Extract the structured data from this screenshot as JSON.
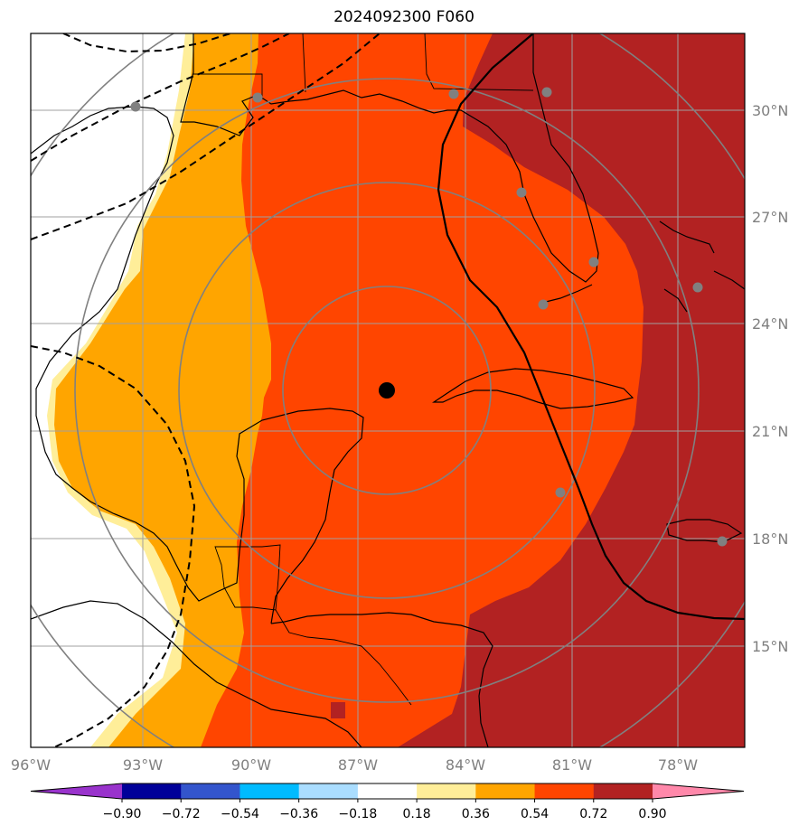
{
  "title": "2024092300 F060",
  "axes": {
    "lon_ticks": [
      "96°W",
      "93°W",
      "90°W",
      "87°W",
      "84°W",
      "81°W",
      "78°W"
    ],
    "lat_ticks": [
      "30°N",
      "27°N",
      "24°N",
      "21°N",
      "18°N",
      "15°N"
    ]
  },
  "colorbar": {
    "levels": [
      "−0.90",
      "−0.72",
      "−0.54",
      "−0.36",
      "−0.18",
      "0.18",
      "0.36",
      "0.54",
      "0.72",
      "0.90"
    ],
    "colors": [
      "#9933cc",
      "#000099",
      "#3355cc",
      "#00bbff",
      "#aaddff",
      "#ffffff",
      "#ffee99",
      "#ffa500",
      "#ff4500",
      "#b22222",
      "#ff88aa"
    ]
  },
  "fill_colors": {
    "white": "#ffffff",
    "pale_yellow": "#ffee99",
    "orange": "#ffa500",
    "orange_red": "#ff4500",
    "dark_red": "#b22222"
  },
  "markers": {
    "center": "black-dot",
    "stations": "gray-dots"
  },
  "grid_color": "#a0a0a0",
  "range_ring_color": "#808080"
}
